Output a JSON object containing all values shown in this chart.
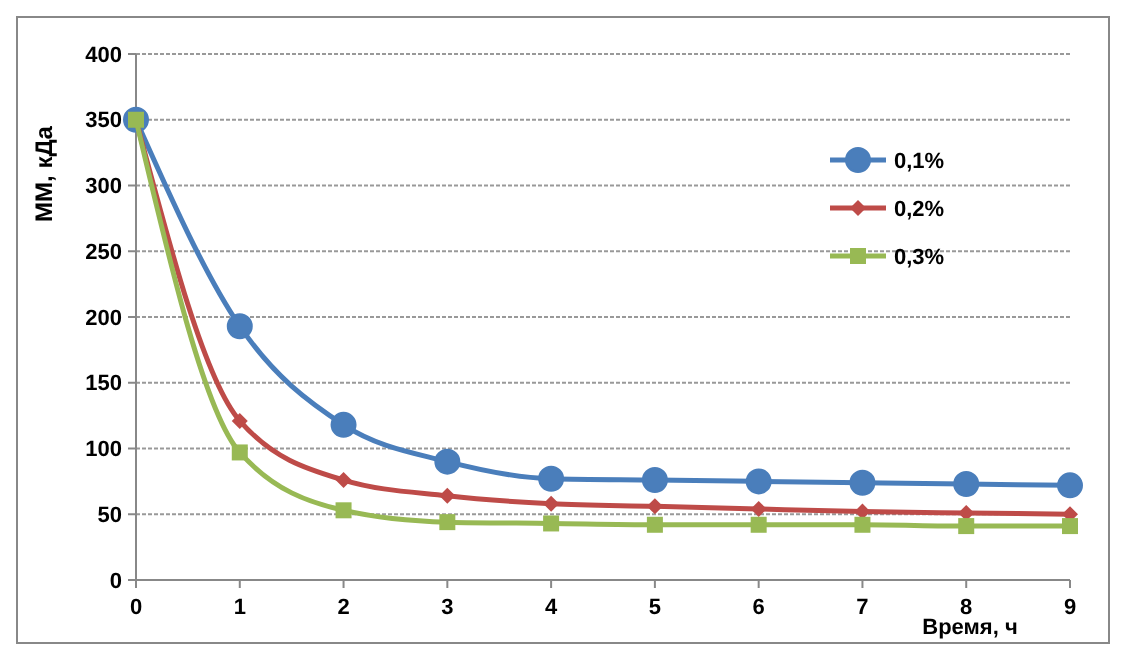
{
  "chart_data": {
    "type": "line",
    "xlabel": "Время, ч",
    "ylabel": "ММ, кДа",
    "x": [
      0,
      1,
      2,
      3,
      4,
      5,
      6,
      7,
      8,
      9
    ],
    "xlim": [
      0,
      9
    ],
    "xticks": [
      0,
      1,
      2,
      3,
      4,
      5,
      6,
      7,
      8,
      9
    ],
    "ylim": [
      0,
      400
    ],
    "yticks": [
      0,
      50,
      100,
      150,
      200,
      250,
      300,
      350,
      400
    ],
    "grid": "y",
    "legend": "top right",
    "series": [
      {
        "name": "0,1%",
        "color": "#4a7ebb",
        "marker": "circle",
        "values": [
          350,
          193,
          118,
          90,
          77,
          76,
          75,
          74,
          73,
          72
        ]
      },
      {
        "name": "0,2%",
        "color": "#be4b48",
        "marker": "diamond",
        "values": [
          350,
          121,
          76,
          64,
          58,
          56,
          54,
          52,
          51,
          50
        ]
      },
      {
        "name": "0,3%",
        "color": "#98b954",
        "marker": "square",
        "values": [
          350,
          97,
          53,
          44,
          43,
          42,
          42,
          42,
          41,
          41
        ]
      }
    ]
  }
}
